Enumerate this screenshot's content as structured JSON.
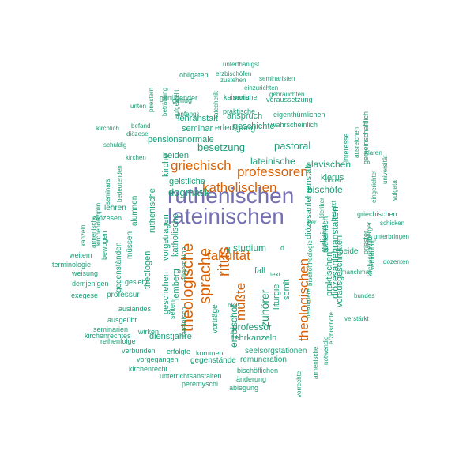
{
  "colors": {
    "tier1": "#7570b3",
    "tier2": "#d95f02",
    "tier3": "#1b9e77"
  },
  "words": [
    {
      "text": "ruthenischen",
      "tier": "tier1"
    },
    {
      "text": "lateinischen",
      "tier": "tier1"
    },
    {
      "text": "theologische",
      "tier": "tier2"
    },
    {
      "text": "sprache",
      "tier": "tier2"
    },
    {
      "text": "ritus",
      "tier": "tier2"
    },
    {
      "text": "katholischen",
      "tier": "tier2"
    },
    {
      "text": "fakultät",
      "tier": "tier2"
    },
    {
      "text": "professoren",
      "tier": "tier2"
    },
    {
      "text": "griechisch",
      "tier": "tier2"
    },
    {
      "text": "theologischen",
      "tier": "tier2"
    },
    {
      "text": "müßte",
      "tier": "tier2"
    },
    {
      "text": "dogmatik",
      "tier": "tier3"
    },
    {
      "text": "pastoral",
      "tier": "tier3"
    },
    {
      "text": "besetzung",
      "tier": "tier3"
    },
    {
      "text": "lateinische",
      "tier": "tier3"
    },
    {
      "text": "slavischen",
      "tier": "tier3"
    },
    {
      "text": "bischöfe",
      "tier": "tier3"
    },
    {
      "text": "klerus",
      "tier": "tier3"
    },
    {
      "text": "diözesanlehranstalt",
      "tier": "tier3"
    },
    {
      "text": "pensionsnormale",
      "tier": "tier3"
    },
    {
      "text": "geschichte",
      "tier": "tier3"
    },
    {
      "text": "lehranstalt",
      "tier": "tier3"
    },
    {
      "text": "seminar",
      "tier": "tier3"
    },
    {
      "text": "anspruch",
      "tier": "tier3"
    },
    {
      "text": "erledigung",
      "tier": "tier3"
    },
    {
      "text": "beiden",
      "tier": "tier3"
    },
    {
      "text": "geistliche",
      "tier": "tier3"
    },
    {
      "text": "kirche",
      "tier": "tier3"
    },
    {
      "text": "studium",
      "tier": "tier3"
    },
    {
      "text": "fall",
      "tier": "tier3"
    },
    {
      "text": "text",
      "tier": "tier3"
    },
    {
      "text": "zuhörer",
      "tier": "tier3"
    },
    {
      "text": "liturgie",
      "tier": "tier3"
    },
    {
      "text": "somit",
      "tier": "tier3"
    },
    {
      "text": "professor",
      "tier": "tier3"
    },
    {
      "text": "lehrkanzeln",
      "tier": "tier3"
    },
    {
      "text": "erzbischof",
      "tier": "tier3"
    },
    {
      "text": "vorträge",
      "tier": "tier3"
    },
    {
      "text": "dienstjahre",
      "tier": "tier3"
    },
    {
      "text": "seelsorgstationen",
      "tier": "tier3"
    },
    {
      "text": "remuneration",
      "tier": "tier3"
    },
    {
      "text": "gegenstände",
      "tier": "tier3"
    },
    {
      "text": "kommen",
      "tier": "tier3"
    },
    {
      "text": "vorgegangen",
      "tier": "tier3"
    },
    {
      "text": "erfolgte",
      "tier": "tier3"
    },
    {
      "text": "bischöflichen",
      "tier": "tier3"
    },
    {
      "text": "änderung",
      "tier": "tier3"
    },
    {
      "text": "ablegung",
      "tier": "tier3"
    },
    {
      "text": "unterrichtsanstalten",
      "tier": "tier3"
    },
    {
      "text": "peremyschl",
      "tier": "tier3"
    },
    {
      "text": "kirchenrecht",
      "tier": "tier3"
    },
    {
      "text": "verbunden",
      "tier": "tier3"
    },
    {
      "text": "reihenfolge",
      "tier": "tier3"
    },
    {
      "text": "kirchenrechtes",
      "tier": "tier3"
    },
    {
      "text": "seminarien",
      "tier": "tier3"
    },
    {
      "text": "ausgeübt",
      "tier": "tier3"
    },
    {
      "text": "wirken",
      "tier": "tier3"
    },
    {
      "text": "auslandes",
      "tier": "tier3"
    },
    {
      "text": "professur",
      "tier": "tier3"
    },
    {
      "text": "gesieht",
      "tier": "tier3"
    },
    {
      "text": "exegese",
      "tier": "tier3"
    },
    {
      "text": "demjenigen",
      "tier": "tier3"
    },
    {
      "text": "weisung",
      "tier": "tier3"
    },
    {
      "text": "terminologie",
      "tier": "tier3"
    },
    {
      "text": "weitem",
      "tier": "tier3"
    },
    {
      "text": "gegenständen",
      "tier": "tier3"
    },
    {
      "text": "bewogen",
      "tier": "tier3"
    },
    {
      "text": "diözesen",
      "tier": "tier3"
    },
    {
      "text": "lehren",
      "tier": "tier3"
    },
    {
      "text": "müssen",
      "tier": "tier3"
    },
    {
      "text": "alumnen",
      "tier": "tier3"
    },
    {
      "text": "theologen",
      "tier": "tier3"
    },
    {
      "text": "vorgetragen",
      "tier": "tier3"
    },
    {
      "text": "ruthenische",
      "tier": "tier3"
    },
    {
      "text": "katholische",
      "tier": "tier3"
    },
    {
      "text": "geschehen",
      "tier": "tier3"
    },
    {
      "text": "lemberg",
      "tier": "tier3"
    },
    {
      "text": "seiten",
      "tier": "tier3"
    },
    {
      "text": "lateinisch",
      "tier": "tier3"
    },
    {
      "text": "allgemeine",
      "tier": "tier3"
    },
    {
      "text": "kanzeln",
      "tier": "tier3"
    },
    {
      "text": "kirchendisziplin",
      "tier": "tier3"
    },
    {
      "text": "armenische",
      "tier": "tier3"
    },
    {
      "text": "seminars",
      "tier": "tier3"
    },
    {
      "text": "bedeutenden",
      "tier": "tier3"
    },
    {
      "text": "kirchen",
      "tier": "tier3"
    },
    {
      "text": "schuldig",
      "tier": "tier3"
    },
    {
      "text": "kirchlich",
      "tier": "tier3"
    },
    {
      "text": "befand",
      "tier": "tier3"
    },
    {
      "text": "unten",
      "tier": "tier3"
    },
    {
      "text": "diözese",
      "tier": "tier3"
    },
    {
      "text": "priestern",
      "tier": "tier3"
    },
    {
      "text": "beträuung",
      "tier": "tier3"
    },
    {
      "text": "aufgestellt",
      "tier": "tier3"
    },
    {
      "text": "genügender",
      "tier": "tier3"
    },
    {
      "text": "genug",
      "tier": "tier3"
    },
    {
      "text": "anfangs",
      "tier": "tier3"
    },
    {
      "text": "katechetik",
      "tier": "tier3"
    },
    {
      "text": "obligaten",
      "tier": "tier3"
    },
    {
      "text": "unterthänigst",
      "tier": "tier3"
    },
    {
      "text": "erzbischöfen",
      "tier": "tier3"
    },
    {
      "text": "zustehen",
      "tier": "tier3"
    },
    {
      "text": "seminaristen",
      "tier": "tier3"
    },
    {
      "text": "einzurichten",
      "tier": "tier3"
    },
    {
      "text": "gebrauchten",
      "tier": "tier3"
    },
    {
      "text": "kaiserliche",
      "tier": "tier3"
    },
    {
      "text": "voraussetzung",
      "tier": "tier3"
    },
    {
      "text": "moral",
      "tier": "tier3"
    },
    {
      "text": "praktische",
      "tier": "tier3"
    },
    {
      "text": "eigenthümlichen",
      "tier": "tier3"
    },
    {
      "text": "wahrscheinlich",
      "tier": "tier3"
    },
    {
      "text": "interesse",
      "tier": "tier3"
    },
    {
      "text": "hören",
      "tier": "tier3"
    },
    {
      "text": "ausreichen",
      "tier": "tier3"
    },
    {
      "text": "gemeinschaftlich",
      "tier": "tier3"
    },
    {
      "text": "klaren",
      "tier": "tier3"
    },
    {
      "text": "eingerichtet",
      "tier": "tier3"
    },
    {
      "text": "universität",
      "tier": "tier3"
    },
    {
      "text": "vulgata",
      "tier": "tier3"
    },
    {
      "text": "griechischen",
      "tier": "tier3"
    },
    {
      "text": "schicken",
      "tier": "tier3"
    },
    {
      "text": "unterbringen",
      "tier": "tier3"
    },
    {
      "text": "dozenten",
      "tier": "tier3"
    },
    {
      "text": "verordnung",
      "tier": "tier3"
    },
    {
      "text": "kirchenprovinz",
      "tier": "tier3"
    },
    {
      "text": "lemberger",
      "tier": "tier3"
    },
    {
      "text": "priester",
      "tier": "tier3"
    },
    {
      "text": "vorausgeschickten",
      "tier": "tier3"
    },
    {
      "text": "praktischen",
      "tier": "tier3"
    },
    {
      "text": "beide",
      "tier": "tier3"
    },
    {
      "text": "manchmal",
      "tier": "tier3"
    },
    {
      "text": "bundes",
      "tier": "tier3"
    },
    {
      "text": "verstärkt",
      "tier": "tier3"
    },
    {
      "text": "galizien",
      "tier": "tier3"
    },
    {
      "text": "ruthenisch",
      "tier": "tier3"
    },
    {
      "text": "diözesanlehranstalten",
      "tier": "tier3"
    },
    {
      "text": "notwendig",
      "tier": "tier3"
    },
    {
      "text": "erzbischöfe",
      "tier": "tier3"
    },
    {
      "text": "armenische",
      "tier": "tier3"
    },
    {
      "text": "bischoftheologie",
      "tier": "tier3"
    },
    {
      "text": "besondere",
      "tier": "tier3"
    },
    {
      "text": "vorrechte",
      "tier": "tier3"
    },
    {
      "text": "kleriker",
      "tier": "tier3"
    },
    {
      "text": "besetzt",
      "tier": "tier3"
    },
    {
      "text": "per",
      "tier": "tier3"
    },
    {
      "text": "bloß",
      "tier": "tier3"
    },
    {
      "text": "fl",
      "tier": "tier3"
    },
    {
      "text": "d",
      "tier": "tier3"
    }
  ]
}
